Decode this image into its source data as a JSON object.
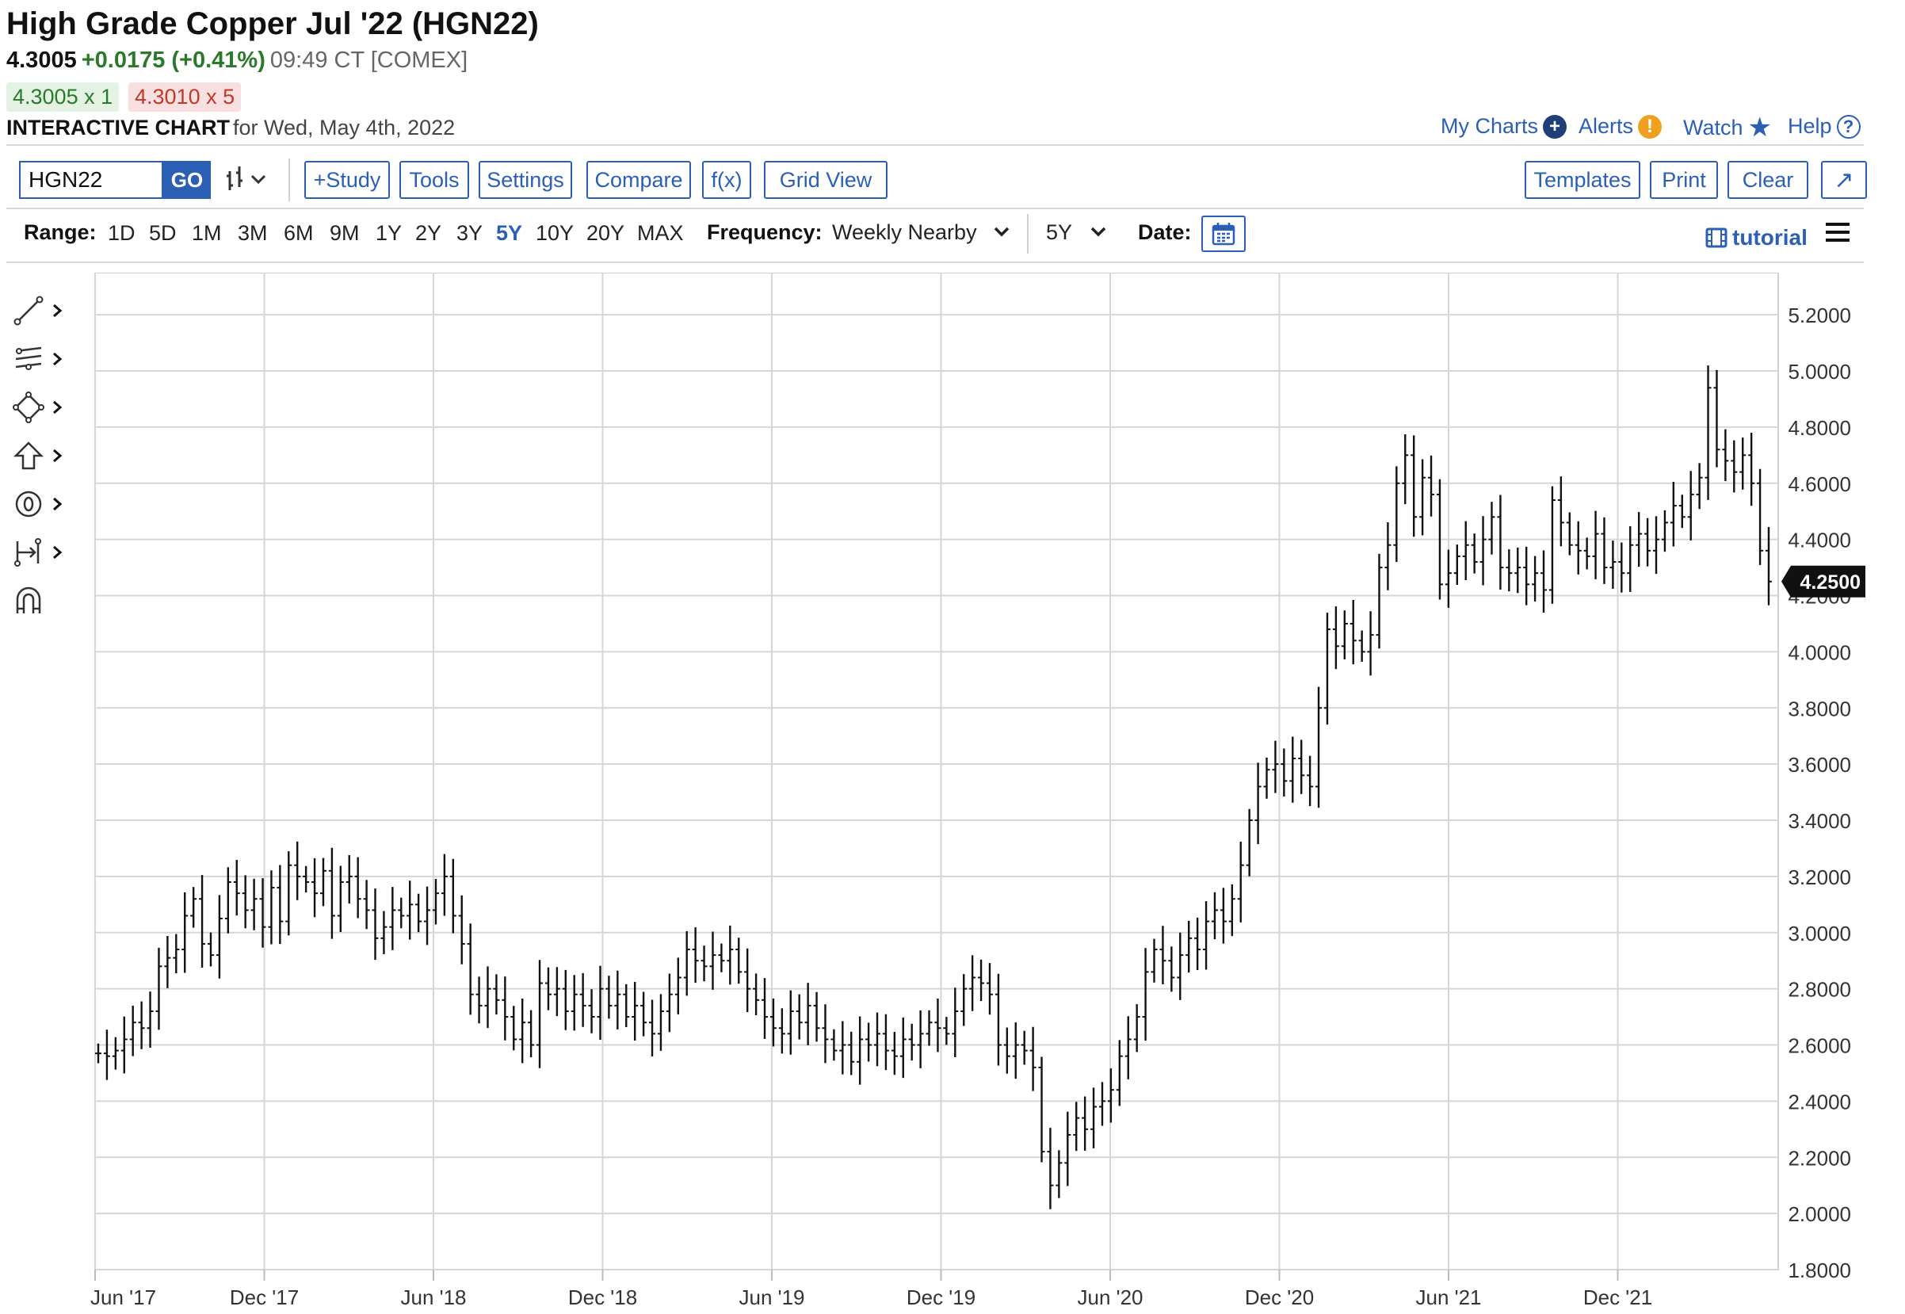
{
  "header": {
    "title": "High Grade Copper Jul '22 (HGN22)",
    "last": "4.3005",
    "change": "+0.0175 (+0.41%)",
    "time_exchange": "09:49 CT [COMEX]",
    "bid": "4.3005 x 1",
    "ask": "4.3010 x 5",
    "interactive_chart": "INTERACTIVE CHART",
    "for_date": "for Wed, May 4th, 2022"
  },
  "top_links": {
    "my_charts": "My Charts",
    "alerts": "Alerts",
    "watch": "Watch",
    "help": "Help"
  },
  "toolbar": {
    "symbol_value": "HGN22",
    "go": "GO",
    "study": "+Study",
    "tools": "Tools",
    "settings": "Settings",
    "compare": "Compare",
    "fx": "f(x)",
    "grid_view": "Grid View",
    "templates": "Templates",
    "print": "Print",
    "clear": "Clear",
    "expand_glyph": "↗"
  },
  "range_bar": {
    "label": "Range:",
    "options": [
      "1D",
      "5D",
      "1M",
      "3M",
      "6M",
      "9M",
      "1Y",
      "2Y",
      "3Y",
      "5Y",
      "10Y",
      "20Y",
      "MAX"
    ],
    "active": "5Y",
    "frequency_label": "Frequency:",
    "frequency_value": "Weekly Nearby",
    "period_value": "5Y",
    "date_label": "Date:",
    "tutorial": "tutorial"
  },
  "colors": {
    "accent": "#2b5fb4",
    "up": "#2a7a2a",
    "down": "#c0392b",
    "bars": "#111111",
    "grid": "#d6d6d6"
  },
  "left_tools": [
    "line-tool-icon",
    "fib-tool-icon",
    "shape-tool-icon",
    "arrow-tool-icon",
    "text-tool-icon",
    "measure-tool-icon",
    "magnet-icon"
  ],
  "chart_data": {
    "type": "ohlc",
    "frequency": "weekly",
    "x_tick_labels": [
      "Jun '17",
      "Dec '17",
      "Jun '18",
      "Dec '18",
      "Jun '19",
      "Dec '19",
      "Jun '20",
      "Dec '20",
      "Jun '21",
      "Dec '21"
    ],
    "y_tick_labels": [
      "5.2000",
      "5.0000",
      "4.8000",
      "4.6000",
      "4.4000",
      "4.2000",
      "4.0000",
      "3.8000",
      "3.6000",
      "3.4000",
      "3.2000",
      "3.0000",
      "2.8000",
      "2.6000",
      "2.4000",
      "2.2000",
      "2.0000",
      "1.8000"
    ],
    "ylim": [
      1.8,
      5.35
    ],
    "grid": true,
    "last_price_label": "4.2500",
    "last_price": 4.25,
    "closes": [
      2.57,
      2.56,
      2.58,
      2.62,
      2.68,
      2.66,
      2.72,
      2.88,
      2.91,
      2.94,
      3.06,
      3.12,
      2.96,
      2.92,
      3.05,
      3.18,
      3.14,
      3.08,
      3.12,
      3.02,
      3.16,
      3.04,
      3.24,
      3.2,
      3.18,
      3.14,
      3.22,
      3.06,
      3.18,
      3.2,
      3.12,
      3.08,
      2.98,
      3.02,
      3.08,
      3.06,
      3.1,
      3.04,
      3.08,
      3.14,
      3.2,
      3.06,
      2.96,
      2.78,
      2.74,
      2.8,
      2.76,
      2.7,
      2.62,
      2.68,
      2.6,
      2.82,
      2.78,
      2.8,
      2.72,
      2.78,
      2.74,
      2.7,
      2.8,
      2.74,
      2.78,
      2.7,
      2.74,
      2.68,
      2.64,
      2.72,
      2.78,
      2.84,
      2.94,
      2.9,
      2.88,
      2.92,
      2.9,
      2.94,
      2.86,
      2.8,
      2.76,
      2.7,
      2.66,
      2.64,
      2.72,
      2.68,
      2.74,
      2.66,
      2.62,
      2.58,
      2.6,
      2.54,
      2.62,
      2.6,
      2.64,
      2.58,
      2.56,
      2.62,
      2.6,
      2.64,
      2.68,
      2.66,
      2.64,
      2.72,
      2.8,
      2.84,
      2.82,
      2.78,
      2.6,
      2.56,
      2.6,
      2.58,
      2.52,
      2.22,
      2.1,
      2.18,
      2.28,
      2.34,
      2.3,
      2.38,
      2.4,
      2.44,
      2.56,
      2.62,
      2.7,
      2.86,
      2.94,
      2.9,
      2.84,
      2.92,
      2.98,
      2.94,
      3.04,
      3.08,
      3.04,
      3.12,
      3.24,
      3.4,
      3.52,
      3.58,
      3.6,
      3.54,
      3.62,
      3.56,
      3.52,
      3.8,
      4.08,
      4.02,
      4.1,
      4.04,
      4.0,
      4.06,
      4.3,
      4.38,
      4.6,
      4.7,
      4.48,
      4.62,
      4.56,
      4.24,
      4.28,
      4.34,
      4.38,
      4.32,
      4.4,
      4.48,
      4.3,
      4.28,
      4.3,
      4.24,
      4.28,
      4.22,
      4.54,
      4.46,
      4.38,
      4.36,
      4.34,
      4.42,
      4.3,
      4.32,
      4.28,
      4.38,
      4.42,
      4.36,
      4.4,
      4.46,
      4.52,
      4.48,
      4.56,
      4.62,
      4.94,
      4.72,
      4.68,
      4.64,
      4.7,
      4.6,
      4.36,
      4.25
    ]
  }
}
